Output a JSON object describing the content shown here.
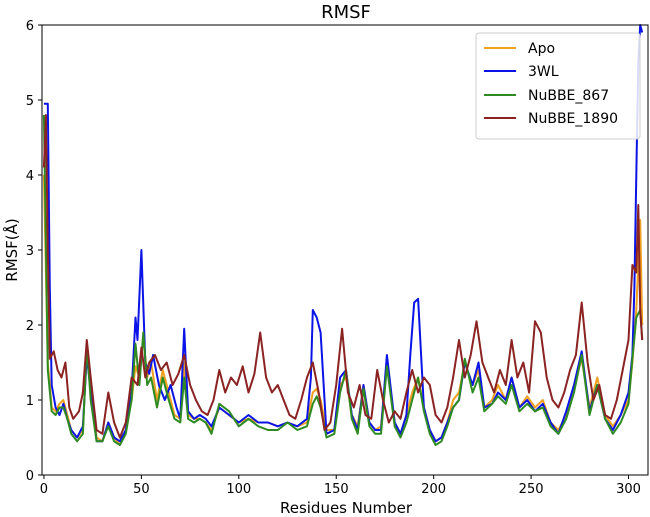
{
  "chart_data": {
    "type": "line",
    "title": "RMSF",
    "xlabel": "Residues Number",
    "ylabel": "RMSF(Å)",
    "xlim": [
      -1,
      310
    ],
    "ylim": [
      0,
      6
    ],
    "xticks": [
      0,
      50,
      100,
      150,
      200,
      250,
      300
    ],
    "yticks": [
      0,
      1,
      2,
      3,
      4,
      5,
      6
    ],
    "grid": false,
    "legend_position": "top-right",
    "series": [
      {
        "name": "Apo",
        "color": "#f0a020",
        "x": [
          0,
          2,
          4,
          6,
          8,
          10,
          12,
          14,
          17,
          20,
          22,
          24,
          27,
          30,
          33,
          36,
          39,
          42,
          45,
          47,
          49,
          51,
          53,
          55,
          58,
          61,
          64,
          67,
          70,
          72,
          74,
          77,
          80,
          83,
          86,
          90,
          95,
          100,
          105,
          110,
          115,
          120,
          125,
          130,
          135,
          138,
          140,
          142,
          145,
          149,
          152,
          155,
          158,
          161,
          164,
          167,
          170,
          173,
          176,
          180,
          183,
          186,
          189,
          192,
          195,
          198,
          201,
          204,
          207,
          210,
          213,
          216,
          220,
          223,
          226,
          230,
          233,
          237,
          240,
          244,
          248,
          252,
          256,
          260,
          264,
          268,
          272,
          276,
          280,
          284,
          288,
          292,
          296,
          300,
          302,
          304,
          306,
          307
        ],
        "values": [
          4.0,
          1.5,
          0.9,
          0.85,
          0.95,
          1.0,
          0.8,
          0.6,
          0.5,
          0.6,
          1.65,
          1.2,
          0.5,
          0.45,
          0.7,
          0.5,
          0.4,
          0.6,
          1.0,
          1.45,
          1.3,
          1.85,
          1.3,
          1.5,
          1.0,
          1.4,
          1.1,
          0.8,
          0.75,
          1.5,
          0.8,
          0.75,
          0.75,
          0.7,
          0.6,
          0.9,
          0.8,
          0.7,
          0.75,
          0.7,
          0.7,
          0.65,
          0.7,
          0.65,
          0.7,
          1.1,
          1.15,
          1.0,
          0.6,
          0.6,
          1.2,
          1.3,
          0.8,
          0.65,
          1.2,
          0.7,
          0.6,
          0.65,
          1.5,
          0.7,
          0.55,
          0.8,
          1.1,
          1.3,
          0.9,
          0.6,
          0.45,
          0.5,
          0.7,
          1.0,
          1.1,
          1.5,
          1.2,
          1.4,
          0.9,
          1.0,
          1.2,
          1.0,
          1.3,
          0.9,
          1.05,
          0.9,
          1.0,
          0.7,
          0.6,
          0.8,
          1.2,
          1.55,
          0.9,
          1.3,
          0.8,
          0.65,
          0.8,
          1.0,
          1.5,
          2.2,
          3.4,
          2.0
        ]
      },
      {
        "name": "3WL",
        "color": "#0a14e6",
        "x": [
          0,
          1,
          2,
          3,
          4,
          6,
          8,
          10,
          12,
          14,
          17,
          20,
          22,
          24,
          27,
          30,
          33,
          36,
          39,
          42,
          45,
          47,
          48,
          50,
          52,
          54,
          56,
          59,
          62,
          65,
          68,
          70,
          72,
          74,
          77,
          80,
          83,
          86,
          90,
          95,
          100,
          105,
          110,
          115,
          120,
          125,
          130,
          135,
          137,
          138,
          140,
          142,
          145,
          149,
          152,
          155,
          158,
          161,
          164,
          167,
          170,
          173,
          176,
          180,
          183,
          186,
          188,
          190,
          192,
          195,
          198,
          201,
          204,
          207,
          210,
          213,
          216,
          220,
          223,
          226,
          230,
          233,
          237,
          240,
          244,
          248,
          252,
          256,
          260,
          264,
          268,
          272,
          276,
          280,
          284,
          288,
          292,
          296,
          300,
          302,
          303,
          304,
          305,
          306,
          307
        ],
        "values": [
          4.95,
          4.95,
          4.95,
          2.5,
          1.2,
          0.9,
          0.8,
          0.95,
          0.75,
          0.6,
          0.5,
          0.65,
          1.6,
          1.1,
          0.45,
          0.45,
          0.7,
          0.5,
          0.45,
          0.6,
          1.1,
          2.1,
          1.8,
          3.0,
          1.5,
          1.35,
          1.6,
          1.2,
          1.0,
          1.2,
          0.9,
          0.75,
          1.95,
          0.85,
          0.75,
          0.8,
          0.75,
          0.65,
          0.9,
          0.8,
          0.7,
          0.8,
          0.7,
          0.7,
          0.65,
          0.7,
          0.65,
          0.75,
          1.3,
          2.2,
          2.1,
          1.9,
          0.55,
          0.6,
          1.3,
          1.4,
          0.8,
          0.6,
          1.2,
          0.7,
          0.6,
          0.6,
          1.6,
          0.7,
          0.55,
          0.8,
          1.6,
          2.3,
          2.35,
          0.9,
          0.6,
          0.45,
          0.5,
          0.7,
          0.9,
          1.0,
          1.5,
          1.2,
          1.5,
          0.9,
          0.95,
          1.1,
          1.0,
          1.3,
          0.9,
          1.0,
          0.85,
          0.95,
          0.7,
          0.55,
          0.85,
          1.2,
          1.65,
          0.85,
          1.2,
          0.75,
          0.6,
          0.8,
          1.1,
          1.6,
          2.5,
          4.0,
          5.5,
          6.0,
          5.9
        ]
      },
      {
        "name": "NuBBE_867",
        "color": "#2e8b22",
        "x": [
          0,
          2,
          4,
          6,
          8,
          10,
          12,
          14,
          17,
          20,
          22,
          24,
          27,
          30,
          33,
          36,
          39,
          42,
          45,
          47,
          49,
          51,
          53,
          55,
          58,
          61,
          64,
          67,
          70,
          72,
          74,
          77,
          80,
          83,
          86,
          90,
          95,
          100,
          105,
          110,
          115,
          120,
          125,
          130,
          135,
          138,
          140,
          142,
          145,
          149,
          152,
          155,
          158,
          161,
          164,
          167,
          170,
          173,
          176,
          180,
          183,
          186,
          189,
          192,
          195,
          198,
          201,
          204,
          207,
          210,
          213,
          216,
          220,
          223,
          226,
          230,
          233,
          237,
          240,
          244,
          248,
          252,
          256,
          260,
          264,
          268,
          272,
          276,
          280,
          284,
          288,
          292,
          296,
          300,
          302,
          304,
          306,
          307
        ],
        "values": [
          4.8,
          1.4,
          0.85,
          0.8,
          0.9,
          0.9,
          0.75,
          0.55,
          0.45,
          0.55,
          1.75,
          1.0,
          0.45,
          0.45,
          0.65,
          0.45,
          0.4,
          0.55,
          1.0,
          1.75,
          1.2,
          1.9,
          1.2,
          1.3,
          0.9,
          1.3,
          1.0,
          0.75,
          0.7,
          1.3,
          0.75,
          0.7,
          0.75,
          0.7,
          0.55,
          0.95,
          0.85,
          0.65,
          0.75,
          0.65,
          0.6,
          0.6,
          0.7,
          0.6,
          0.65,
          0.95,
          1.05,
          0.9,
          0.5,
          0.55,
          1.1,
          1.4,
          0.75,
          0.55,
          1.15,
          0.65,
          0.55,
          0.55,
          1.45,
          0.65,
          0.5,
          0.7,
          1.0,
          1.3,
          0.85,
          0.55,
          0.4,
          0.45,
          0.65,
          0.9,
          1.0,
          1.55,
          1.1,
          1.3,
          0.85,
          0.95,
          1.05,
          0.95,
          1.2,
          0.85,
          0.95,
          0.85,
          0.9,
          0.65,
          0.55,
          0.75,
          1.1,
          1.6,
          0.8,
          1.2,
          0.75,
          0.55,
          0.7,
          0.95,
          1.55,
          2.1,
          2.2,
          1.8
        ]
      },
      {
        "name": "NuBBE_1890",
        "color": "#8b2323",
        "x": [
          0,
          1,
          2,
          3,
          5,
          7,
          9,
          11,
          13,
          15,
          18,
          20,
          22,
          24,
          27,
          30,
          33,
          36,
          39,
          42,
          45,
          48,
          50,
          52,
          54,
          57,
          60,
          63,
          66,
          69,
          72,
          75,
          78,
          81,
          84,
          87,
          90,
          93,
          96,
          99,
          102,
          105,
          108,
          111,
          114,
          117,
          120,
          123,
          126,
          129,
          132,
          135,
          138,
          141,
          144,
          147,
          150,
          153,
          156,
          159,
          162,
          165,
          168,
          171,
          174,
          177,
          180,
          183,
          186,
          189,
          192,
          195,
          198,
          201,
          204,
          207,
          210,
          213,
          216,
          219,
          222,
          225,
          228,
          231,
          234,
          237,
          240,
          243,
          246,
          249,
          252,
          255,
          258,
          261,
          264,
          267,
          270,
          273,
          276,
          279,
          282,
          285,
          288,
          291,
          294,
          297,
          300,
          302,
          304,
          305,
          306,
          307
        ],
        "values": [
          4.1,
          4.8,
          3.0,
          1.55,
          1.65,
          1.4,
          1.3,
          1.5,
          0.9,
          0.75,
          0.85,
          1.1,
          1.8,
          1.3,
          0.6,
          0.55,
          1.1,
          0.7,
          0.5,
          0.7,
          1.3,
          1.2,
          1.7,
          1.3,
          1.5,
          1.6,
          1.4,
          1.5,
          1.2,
          1.35,
          1.6,
          1.2,
          1.0,
          0.85,
          0.8,
          1.0,
          1.4,
          1.1,
          1.3,
          1.2,
          1.45,
          1.1,
          1.35,
          1.9,
          1.3,
          1.1,
          1.2,
          1.0,
          0.8,
          0.75,
          1.0,
          1.3,
          1.5,
          1.1,
          0.6,
          0.7,
          1.2,
          1.95,
          1.1,
          0.9,
          1.2,
          0.8,
          0.75,
          1.4,
          1.0,
          0.7,
          0.85,
          0.75,
          1.1,
          1.4,
          1.1,
          1.3,
          1.2,
          0.8,
          0.7,
          0.9,
          1.3,
          1.8,
          1.3,
          1.6,
          2.05,
          1.5,
          1.3,
          1.1,
          1.4,
          1.2,
          1.8,
          1.3,
          1.5,
          1.1,
          2.05,
          1.9,
          1.3,
          1.0,
          0.9,
          1.1,
          1.4,
          1.6,
          2.3,
          1.5,
          1.0,
          1.2,
          0.8,
          0.75,
          1.0,
          1.4,
          1.8,
          2.8,
          2.7,
          3.6,
          2.2,
          1.8
        ]
      }
    ]
  }
}
